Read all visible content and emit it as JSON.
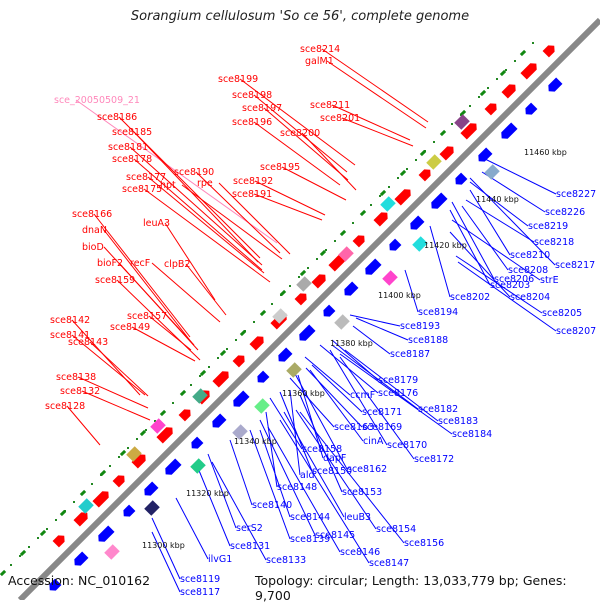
{
  "title": "Sorangium cellulosum 'So ce 56', complete genome",
  "footer": {
    "accession": "Accession: NC_010162",
    "summary": "Topology: circular; Length: 13,033,779 bp; Genes: 9,700"
  },
  "colors": {
    "forward": "#ff0000",
    "reverse": "#0000ff",
    "backbone": "#888888",
    "tick": "#228822",
    "pink_label": "#ff88bb"
  },
  "ruler_labels": [
    "11300 kbp",
    "11320 kbp",
    "11340 kbp",
    "11360 kbp",
    "11380 kbp",
    "11400 kbp",
    "11420 kbp",
    "11440 kbp",
    "11460 kbp"
  ],
  "forward_genes": [
    {
      "label": "sce8214",
      "color": "#ff0000"
    },
    {
      "label": "galM1",
      "color": "#ff0000"
    },
    {
      "label": "sce8199",
      "color": "#ff0000"
    },
    {
      "label": "sce8198",
      "color": "#ff0000"
    },
    {
      "label": "sce8197",
      "color": "#ff0000"
    },
    {
      "label": "sce8196",
      "color": "#ff0000"
    },
    {
      "label": "sce8211",
      "color": "#ff0000"
    },
    {
      "label": "sce8201",
      "color": "#ff0000"
    },
    {
      "label": "sce8200",
      "color": "#ff0000"
    },
    {
      "label": "sce_20050509_21",
      "color": "#ff88bb"
    },
    {
      "label": "sce8186",
      "color": "#ff0000"
    },
    {
      "label": "sce8185",
      "color": "#ff0000"
    },
    {
      "label": "sce8181",
      "color": "#ff0000"
    },
    {
      "label": "sce8178",
      "color": "#ff0000"
    },
    {
      "label": "sce8190",
      "color": "#ff0000"
    },
    {
      "label": "sce8177",
      "color": "#ff0000"
    },
    {
      "label": "hpt",
      "color": "#ff0000"
    },
    {
      "label": "rpe",
      "color": "#ff0000"
    },
    {
      "label": "sce8175",
      "color": "#ff0000"
    },
    {
      "label": "sce8195",
      "color": "#ff0000"
    },
    {
      "label": "sce8192",
      "color": "#ff0000"
    },
    {
      "label": "sce8191",
      "color": "#ff0000"
    },
    {
      "label": "sce8166",
      "color": "#ff0000"
    },
    {
      "label": "leuA3",
      "color": "#ff0000"
    },
    {
      "label": "dnaN",
      "color": "#ff0000"
    },
    {
      "label": "bioD",
      "color": "#ff0000"
    },
    {
      "label": "bioF2",
      "color": "#ff0000"
    },
    {
      "label": "recF",
      "color": "#ff0000"
    },
    {
      "label": "clpB2",
      "color": "#ff0000"
    },
    {
      "label": "sce8159",
      "color": "#ff0000"
    },
    {
      "label": "sce8142",
      "color": "#ff0000"
    },
    {
      "label": "sce8157",
      "color": "#ff0000"
    },
    {
      "label": "sce8141",
      "color": "#ff0000"
    },
    {
      "label": "sce8149",
      "color": "#ff0000"
    },
    {
      "label": "sce8143",
      "color": "#ff0000"
    },
    {
      "label": "sce8138",
      "color": "#ff0000"
    },
    {
      "label": "sce8132",
      "color": "#ff0000"
    },
    {
      "label": "sce8128",
      "color": "#ff0000"
    }
  ],
  "reverse_genes": [
    "sce8227",
    "sce8226",
    "sce8219",
    "sce8218",
    "sce8217",
    "sce8210",
    "sce8208",
    "sce8203",
    "sce8206",
    "strE",
    "sce8202",
    "sce8204",
    "sce8194",
    "sce8205",
    "sce8207",
    "sce8193",
    "sce8188",
    "sce8187",
    "sce8179",
    "sce8176",
    "ccmF",
    "sce8171",
    "sce8169",
    "sce8182",
    "sce8183",
    "sce8184",
    "sce8163",
    "cinA",
    "sce8170",
    "sce8172",
    "sce8158",
    "sce8162",
    "sce8150",
    "dapF",
    "ald",
    "sce8148",
    "sce8153",
    "sce8140",
    "sce8144",
    "leuB3",
    "sce8154",
    "sce8156",
    "serS2",
    "sce8139",
    "sce8145",
    "sce8131",
    "sce8146",
    "sce8147",
    "sce8133",
    "ilvG1",
    "sce8119",
    "sce8117"
  ]
}
